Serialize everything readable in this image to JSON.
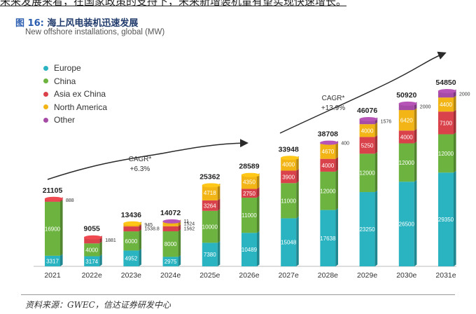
{
  "top_text": "未来发展来看，在国家政策的支持下，未来新增装机量有望实现快速增长。",
  "figure": {
    "label": "图 16:",
    "title": "海上风电装机迅速发展"
  },
  "footer": "资料来源：GWEC，信达证券研发中心",
  "colors": {
    "Europe": "#2ab3c0",
    "China": "#6cb33f",
    "Asia ex China": "#d9424a",
    "North America": "#f2b515",
    "Other": "#a64ca6"
  },
  "chart_data": {
    "type": "bar",
    "stacked": true,
    "title": "New offshore installations, global (MW)",
    "categories": [
      "2021",
      "2022e",
      "2023e",
      "2024e",
      "2025e",
      "2026e",
      "2027e",
      "2028e",
      "2029e",
      "2030e",
      "2031e"
    ],
    "series": [
      {
        "name": "Europe",
        "values": [
          3317,
          3174,
          4952,
          2975,
          7380,
          10489,
          15048,
          17638,
          23250,
          26500,
          29350
        ]
      },
      {
        "name": "China",
        "values": [
          16900,
          4000,
          6000,
          8000,
          10000,
          11000,
          11000,
          12000,
          12000,
          12000,
          12000
        ]
      },
      {
        "name": "Asia ex China",
        "values": [
          888,
          1881,
          1538.8,
          1562,
          3264,
          2750,
          3900,
          4000,
          5250,
          4000,
          7100
        ]
      },
      {
        "name": "North America",
        "values": [
          0,
          0,
          945,
          1524,
          4718,
          4350,
          4000,
          4670,
          4000,
          6420,
          4400
        ]
      },
      {
        "name": "Other",
        "values": [
          0,
          0,
          0,
          11,
          0,
          0,
          0,
          400,
          1576,
          2000,
          2000
        ]
      }
    ],
    "segment_labels": [
      [
        "3317",
        "16900",
        "888",
        "",
        ""
      ],
      [
        "3174",
        "4000",
        "1881",
        "",
        ""
      ],
      [
        "4952",
        "6000",
        "1538.8",
        "945",
        ""
      ],
      [
        "2975",
        "8000",
        "1562",
        "1524",
        "11"
      ],
      [
        "7380",
        "10000",
        "3264",
        "4718",
        ""
      ],
      [
        "10489",
        "11000",
        "2750",
        "4350",
        ""
      ],
      [
        "15048",
        "11000",
        "3900",
        "4000",
        ""
      ],
      [
        "17638",
        "12000",
        "4000",
        "4670",
        "400"
      ],
      [
        "23250",
        "12000",
        "5250",
        "4000",
        "1576"
      ],
      [
        "26500",
        "12000",
        "4000",
        "6420",
        "2000"
      ],
      [
        "29350",
        "12000",
        "7100",
        "4400",
        "2000"
      ]
    ],
    "totals": [
      "21105",
      "9055",
      "13436",
      "14072",
      "25362",
      "28589",
      "33948",
      "38708",
      "46076",
      "50920",
      "54850"
    ],
    "annotations": [
      {
        "text": "CAGR*",
        "text2": "+6.3%"
      },
      {
        "text": "CAGR*",
        "text2": "+13.9%"
      }
    ],
    "legend": [
      "Europe",
      "China",
      "Asia ex China",
      "North America",
      "Other"
    ],
    "legend_position": "top-left",
    "grid": false
  }
}
